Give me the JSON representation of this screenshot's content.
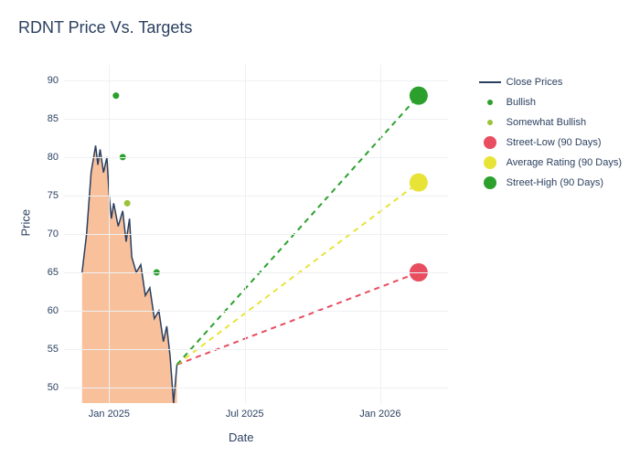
{
  "title": "RDNT Price Vs. Targets",
  "xlabel": "Date",
  "ylabel": "Price",
  "background_color": "#ffffff",
  "grid_color": "#eef0f4",
  "text_color": "#2a3f5f",
  "title_fontsize": 18,
  "label_fontsize": 13,
  "tick_fontsize": 11,
  "legend_fontsize": 11,
  "y_axis": {
    "min": 48,
    "max": 92,
    "ticks": [
      50,
      55,
      60,
      65,
      70,
      75,
      80,
      85,
      90
    ]
  },
  "x_axis": {
    "min_month": 0,
    "max_month": 17,
    "ticks": [
      {
        "month": 2,
        "label": "Jan 2025"
      },
      {
        "month": 8,
        "label": "Jul 2025"
      },
      {
        "month": 14,
        "label": "Jan 2026"
      }
    ]
  },
  "close_prices": {
    "color": "#2a3f5f",
    "fill_color": "#f7b58a",
    "fill_opacity": 0.85,
    "line_width": 1.5,
    "data": [
      {
        "month": 0.8,
        "price": 65
      },
      {
        "month": 1.0,
        "price": 70
      },
      {
        "month": 1.2,
        "price": 78
      },
      {
        "month": 1.4,
        "price": 81.5
      },
      {
        "month": 1.5,
        "price": 79
      },
      {
        "month": 1.6,
        "price": 81
      },
      {
        "month": 1.75,
        "price": 78
      },
      {
        "month": 1.9,
        "price": 80
      },
      {
        "month": 2.0,
        "price": 75
      },
      {
        "month": 2.1,
        "price": 72
      },
      {
        "month": 2.2,
        "price": 74
      },
      {
        "month": 2.4,
        "price": 71
      },
      {
        "month": 2.6,
        "price": 73
      },
      {
        "month": 2.75,
        "price": 69
      },
      {
        "month": 2.9,
        "price": 72
      },
      {
        "month": 3.0,
        "price": 67
      },
      {
        "month": 3.2,
        "price": 65
      },
      {
        "month": 3.4,
        "price": 66
      },
      {
        "month": 3.6,
        "price": 62
      },
      {
        "month": 3.8,
        "price": 63
      },
      {
        "month": 4.0,
        "price": 59
      },
      {
        "month": 4.2,
        "price": 60
      },
      {
        "month": 4.4,
        "price": 56
      },
      {
        "month": 4.55,
        "price": 58
      },
      {
        "month": 4.7,
        "price": 54
      },
      {
        "month": 4.85,
        "price": 48
      },
      {
        "month": 5.0,
        "price": 53
      }
    ]
  },
  "bullish_points": {
    "color": "#2ca02c",
    "marker_size": 5,
    "data": [
      {
        "month": 2.3,
        "price": 88
      },
      {
        "month": 2.6,
        "price": 80
      },
      {
        "month": 4.1,
        "price": 65
      }
    ]
  },
  "somewhat_bullish_points": {
    "color": "#9ac33a",
    "marker_size": 5,
    "data": [
      {
        "month": 2.8,
        "price": 74
      }
    ]
  },
  "projections": {
    "start_month": 5.0,
    "start_price": 53,
    "end_month": 15.7,
    "dash": "6,5",
    "line_width": 2,
    "marker_size": 10,
    "series": [
      {
        "name": "street_low",
        "end_price": 65,
        "color": "#e84d60"
      },
      {
        "name": "average_rating",
        "end_price": 76.7,
        "color": "#e8e337"
      },
      {
        "name": "street_high",
        "end_price": 88,
        "color": "#2ca02c"
      }
    ]
  },
  "legend": {
    "items": [
      {
        "type": "line",
        "label": "Close Prices",
        "color": "#2a3f5f"
      },
      {
        "type": "dot-sm",
        "label": "Bullish",
        "color": "#2ca02c"
      },
      {
        "type": "dot-sm",
        "label": "Somewhat Bullish",
        "color": "#9ac33a"
      },
      {
        "type": "dot-lg",
        "label": "Street-Low (90 Days)",
        "color": "#e84d60"
      },
      {
        "type": "dot-lg",
        "label": "Average Rating (90 Days)",
        "color": "#e8e337"
      },
      {
        "type": "dot-lg",
        "label": "Street-High (90 Days)",
        "color": "#2ca02c"
      }
    ]
  }
}
